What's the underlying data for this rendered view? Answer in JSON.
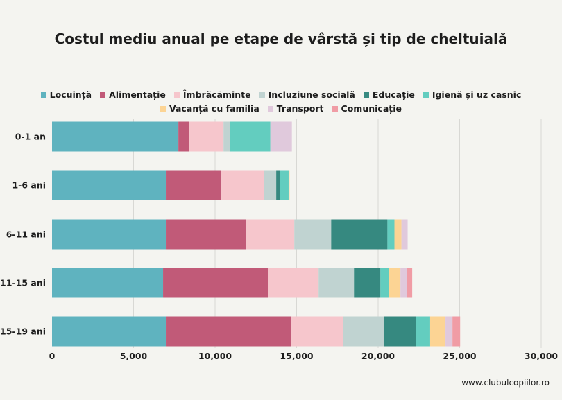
{
  "chart_data": {
    "type": "bar",
    "orientation": "horizontal",
    "stacked": true,
    "title": "Costul mediu anual pe etape de vârstă și tip de cheltuială",
    "categories": [
      "0-1 an",
      "1-6 ani",
      "6-11 ani",
      "11-15 ani",
      "15-19 ani"
    ],
    "series": [
      {
        "name": "Locuință",
        "color": "#5fb3bf",
        "values": [
          7750,
          6980,
          6980,
          6810,
          6980
        ]
      },
      {
        "name": "Alimentație",
        "color": "#c15a78",
        "values": [
          640,
          3400,
          4940,
          6430,
          7660
        ]
      },
      {
        "name": "Îmbrăcăminte",
        "color": "#f6c6cc",
        "values": [
          2130,
          2600,
          2940,
          3110,
          3230
        ]
      },
      {
        "name": "Incluziune socială",
        "color": "#c0d3d1",
        "values": [
          400,
          770,
          2260,
          2170,
          2470
        ]
      },
      {
        "name": "Educație",
        "color": "#368980",
        "values": [
          0,
          210,
          3450,
          1620,
          2000
        ]
      },
      {
        "name": "Igienă și uz casnic",
        "color": "#63cdbf",
        "values": [
          2470,
          550,
          430,
          510,
          850
        ]
      },
      {
        "name": "Vacanță cu familia",
        "color": "#fcd494",
        "values": [
          0,
          60,
          430,
          720,
          940
        ]
      },
      {
        "name": "Transport",
        "color": "#e0c9dc",
        "values": [
          1320,
          0,
          380,
          380,
          430
        ]
      },
      {
        "name": "Comunicație",
        "color": "#f09ca5",
        "values": [
          0,
          0,
          0,
          340,
          470
        ]
      }
    ],
    "xlim": [
      0,
      30000
    ],
    "xticks": [
      "0",
      "5,000",
      "10,000",
      "15,000",
      "20,000",
      "25,000",
      "30,000"
    ],
    "xtick_values": [
      0,
      5000,
      10000,
      15000,
      20000,
      25000,
      30000
    ],
    "grid": true,
    "legend_placement": "top"
  },
  "footer": "www.clubulcopiilor.ro"
}
